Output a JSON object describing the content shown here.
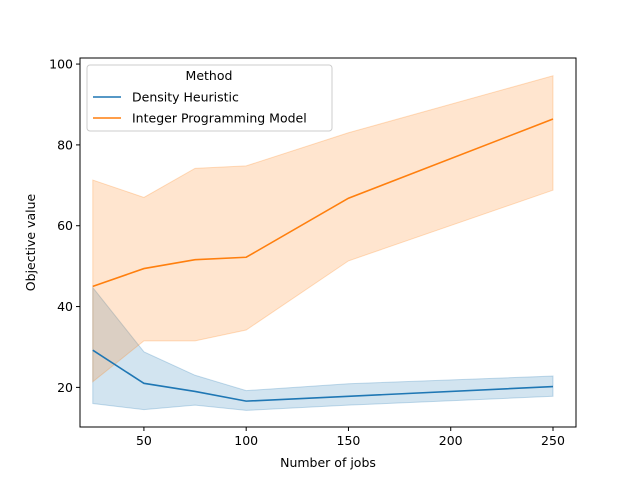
{
  "chart_data": {
    "type": "line",
    "title": "",
    "xlabel": "Number of jobs",
    "ylabel": "Objective value",
    "xlim": [
      18.75,
      261.25
    ],
    "ylim": [
      10.2,
      101.5
    ],
    "xticks": [
      50,
      100,
      150,
      200,
      250
    ],
    "yticks": [
      20,
      40,
      60,
      80,
      100
    ],
    "grid": false,
    "legend": {
      "title": "Method",
      "placement": "top-left"
    },
    "series": [
      {
        "name": "Density Heuristic",
        "color": "#1f77b4",
        "x": [
          25,
          50,
          75,
          100,
          150,
          250
        ],
        "y": [
          29.2,
          21.0,
          19.0,
          16.6,
          17.8,
          20.2
        ],
        "ci_lower": [
          16.0,
          14.5,
          15.6,
          14.3,
          15.6,
          17.8
        ],
        "ci_upper": [
          44.7,
          28.8,
          23.0,
          19.2,
          20.9,
          22.8
        ]
      },
      {
        "name": "Integer Programming Model",
        "color": "#ff7f0e",
        "x": [
          25,
          50,
          75,
          100,
          150,
          250
        ],
        "y": [
          45.0,
          49.4,
          51.6,
          52.2,
          66.8,
          86.4
        ],
        "ci_lower": [
          21.4,
          31.5,
          31.5,
          34.2,
          51.3,
          68.8
        ],
        "ci_upper": [
          71.3,
          67.0,
          74.2,
          74.8,
          83.0,
          97.1
        ]
      }
    ]
  }
}
